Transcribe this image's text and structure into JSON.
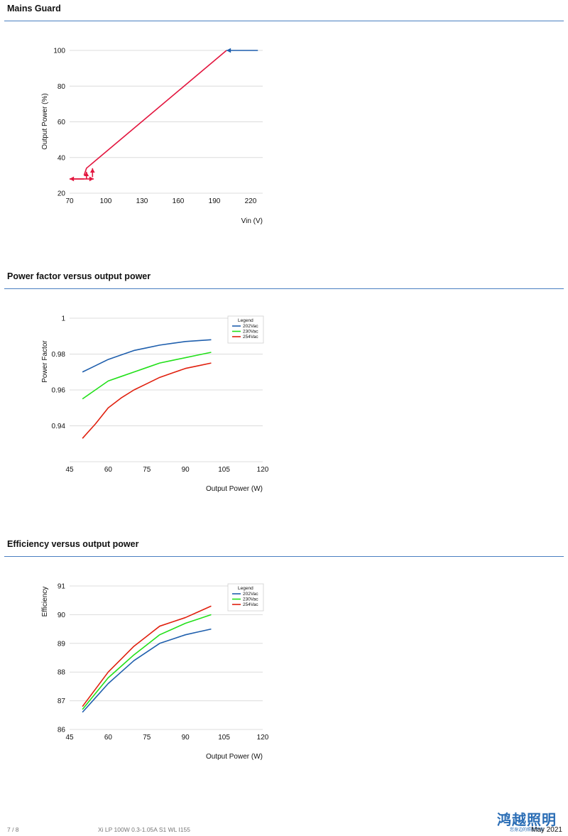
{
  "sections": {
    "mains_guard_title": "Mains Guard",
    "pf_title": "Power factor versus output power",
    "eff_title": "Efficiency versus output power"
  },
  "footer": {
    "page": "7 / 8",
    "product": "Xi LP 100W 0.3-1.05A S1 WL I155",
    "date": "May 2021",
    "logo_text": "鸿越照明",
    "logo_sub": "您身边的照明专家"
  },
  "colors": {
    "rule": "#4a7fc1",
    "blue": "#1f5fad",
    "green": "#22e01a",
    "red": "#e0200e",
    "mains_red": "#e3163f"
  },
  "chart_data": [
    {
      "type": "line",
      "xlabel": "Vin (V)",
      "ylabel": "Output Power (%)",
      "xlim": [
        70,
        230
      ],
      "ylim": [
        20,
        100
      ],
      "xticks": [
        "70",
        "100",
        "130",
        "160",
        "190",
        "220"
      ],
      "yticks": [
        "20",
        "40",
        "60",
        "80",
        "100"
      ],
      "series": [
        {
          "color": "#e3163f",
          "x": [
            82,
            84,
            200
          ],
          "y": [
            30,
            34,
            100
          ]
        }
      ],
      "annotations": [
        {
          "type": "arrow",
          "color": "#1f5fad",
          "from": [
            226,
            100
          ],
          "to": [
            200,
            100
          ]
        },
        {
          "type": "arrow",
          "color": "#e3163f",
          "from": [
            82,
            28
          ],
          "to": [
            70,
            28
          ]
        },
        {
          "type": "arrow",
          "color": "#e3163f",
          "from": [
            70,
            28
          ],
          "to": [
            90,
            28
          ]
        },
        {
          "type": "arrow",
          "color": "#e3163f",
          "from": [
            84,
            28
          ],
          "to": [
            84,
            32
          ]
        },
        {
          "type": "arrow",
          "color": "#e3163f",
          "from": [
            89,
            29
          ],
          "to": [
            89,
            34
          ]
        }
      ]
    },
    {
      "type": "line",
      "xlabel": "Output Power (W)",
      "ylabel": "Power Factor",
      "xlim": [
        45,
        120
      ],
      "ylim": [
        0.92,
        1.0
      ],
      "xticks": [
        "45",
        "60",
        "75",
        "90",
        "105",
        "120"
      ],
      "yticks": [
        "0.94",
        "0.96",
        "0.98",
        "1"
      ],
      "legend_title": "Legend",
      "legend_position": "top-right",
      "series": [
        {
          "name": "202Vac",
          "color": "#1f5fad",
          "x": [
            50,
            55,
            60,
            65,
            70,
            75,
            80,
            85,
            90,
            95,
            100
          ],
          "y": [
            0.97,
            0.9735,
            0.977,
            0.9795,
            0.982,
            0.9835,
            0.985,
            0.986,
            0.987,
            0.9875,
            0.988
          ]
        },
        {
          "name": "230Vac",
          "color": "#22e01a",
          "x": [
            50,
            55,
            60,
            65,
            70,
            75,
            80,
            85,
            90,
            95,
            100
          ],
          "y": [
            0.955,
            0.96,
            0.965,
            0.9675,
            0.97,
            0.9725,
            0.975,
            0.9765,
            0.978,
            0.9795,
            0.981
          ]
        },
        {
          "name": "254Vac",
          "color": "#e0200e",
          "x": [
            50,
            55,
            60,
            65,
            70,
            75,
            80,
            85,
            90,
            95,
            100
          ],
          "y": [
            0.933,
            0.941,
            0.95,
            0.9555,
            0.96,
            0.9635,
            0.967,
            0.9695,
            0.972,
            0.9735,
            0.975
          ]
        }
      ]
    },
    {
      "type": "line",
      "xlabel": "Output Power (W)",
      "ylabel": "Efficiency",
      "xlim": [
        45,
        120
      ],
      "ylim": [
        86,
        91
      ],
      "xticks": [
        "45",
        "60",
        "75",
        "90",
        "105",
        "120"
      ],
      "yticks": [
        "86",
        "87",
        "88",
        "89",
        "90",
        "91"
      ],
      "legend_title": "Legend",
      "legend_position": "top-right",
      "series": [
        {
          "name": "202Vac",
          "color": "#1f5fad",
          "x": [
            50,
            55,
            60,
            65,
            70,
            75,
            80,
            85,
            90,
            95,
            100
          ],
          "y": [
            86.6,
            87.1,
            87.6,
            88.0,
            88.4,
            88.7,
            89.0,
            89.15,
            89.3,
            89.4,
            89.5
          ]
        },
        {
          "name": "230Vac",
          "color": "#22e01a",
          "x": [
            50,
            55,
            60,
            65,
            70,
            75,
            80,
            85,
            90,
            95,
            100
          ],
          "y": [
            86.7,
            87.25,
            87.8,
            88.2,
            88.6,
            88.95,
            89.3,
            89.5,
            89.7,
            89.85,
            90.0
          ]
        },
        {
          "name": "254Vac",
          "color": "#e0200e",
          "x": [
            50,
            55,
            60,
            65,
            70,
            75,
            80,
            85,
            90,
            95,
            100
          ],
          "y": [
            86.8,
            87.4,
            88.0,
            88.45,
            88.9,
            89.25,
            89.6,
            89.75,
            89.9,
            90.1,
            90.3
          ]
        }
      ]
    }
  ]
}
